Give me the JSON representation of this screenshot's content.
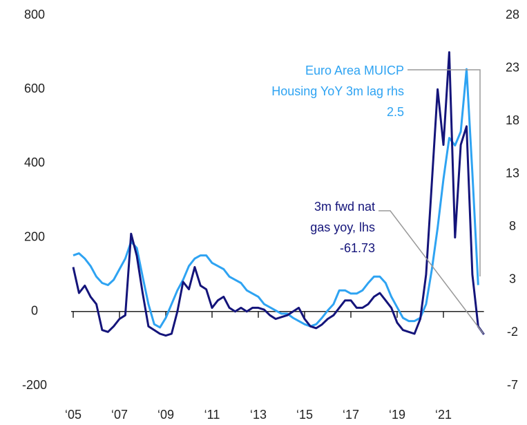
{
  "chart_data": {
    "type": "line",
    "x": [
      2005,
      2005.25,
      2005.5,
      2005.75,
      2006,
      2006.25,
      2006.5,
      2006.75,
      2007,
      2007.25,
      2007.5,
      2007.75,
      2008,
      2008.25,
      2008.5,
      2008.75,
      2009,
      2009.25,
      2009.5,
      2009.75,
      2010,
      2010.25,
      2010.5,
      2010.75,
      2011,
      2011.25,
      2011.5,
      2011.75,
      2012,
      2012.25,
      2012.5,
      2012.75,
      2013,
      2013.25,
      2013.5,
      2013.75,
      2014,
      2014.25,
      2014.5,
      2014.75,
      2015,
      2015.25,
      2015.5,
      2015.75,
      2016,
      2016.25,
      2016.5,
      2016.75,
      2017,
      2017.25,
      2017.5,
      2017.75,
      2018,
      2018.25,
      2018.5,
      2018.75,
      2019,
      2019.25,
      2019.5,
      2019.75,
      2020,
      2020.25,
      2020.5,
      2020.75,
      2021,
      2021.25,
      2021.5,
      2021.75,
      2022,
      2022.25,
      2022.5,
      2022.75
    ],
    "xlim": [
      2005,
      2023
    ],
    "xticks": [
      {
        "value": 2005,
        "label": "‘05"
      },
      {
        "value": 2007,
        "label": "‘07"
      },
      {
        "value": 2009,
        "label": "‘09"
      },
      {
        "value": 2011,
        "label": "‘11"
      },
      {
        "value": 2013,
        "label": "‘13"
      },
      {
        "value": 2015,
        "label": "‘15"
      },
      {
        "value": 2017,
        "label": "‘17"
      },
      {
        "value": 2019,
        "label": "‘19"
      },
      {
        "value": 2021,
        "label": "‘21"
      }
    ],
    "ylim": [
      -200,
      800
    ],
    "yticks": [
      -200,
      0,
      200,
      400,
      600,
      800
    ],
    "y2lim": [
      -7,
      28
    ],
    "y2ticks": [
      -7,
      -2,
      3,
      8,
      13,
      18,
      23,
      28
    ],
    "series": [
      {
        "name": "3m fwd nat gas yoy, lhs",
        "color": "#14147a",
        "values": [
          120,
          50,
          70,
          40,
          20,
          -50,
          -55,
          -40,
          -20,
          -10,
          210,
          150,
          50,
          -40,
          -50,
          -60,
          -65,
          -60,
          0,
          80,
          60,
          120,
          70,
          60,
          10,
          30,
          40,
          10,
          0,
          10,
          0,
          10,
          10,
          5,
          -10,
          -20,
          -15,
          -10,
          0,
          10,
          -20,
          -40,
          -45,
          -35,
          -20,
          -10,
          10,
          30,
          30,
          10,
          10,
          20,
          40,
          50,
          30,
          10,
          -30,
          -50,
          -55,
          -60,
          -20,
          100,
          350,
          600,
          450,
          700,
          200,
          450,
          500,
          100,
          -40,
          -61.73
        ]
      },
      {
        "name": "Euro Area MUICP Housing YoY 3m lag rhs",
        "color": "#2ea3f2",
        "axis": "y2",
        "values": [
          5.3,
          5.5,
          5.0,
          4.3,
          3.3,
          2.7,
          2.5,
          3.0,
          4.0,
          5.0,
          6.6,
          6.0,
          3.3,
          0.7,
          -1.2,
          -1.5,
          -0.6,
          0.7,
          2.0,
          3.0,
          4.3,
          5.0,
          5.3,
          5.3,
          4.6,
          4.3,
          4.0,
          3.3,
          3.0,
          2.7,
          2.0,
          1.7,
          1.4,
          0.7,
          0.4,
          0.1,
          -0.2,
          -0.2,
          -0.6,
          -0.9,
          -1.2,
          -1.4,
          -1.2,
          -0.6,
          0.1,
          0.7,
          2.0,
          2.0,
          1.7,
          1.7,
          2.0,
          2.7,
          3.3,
          3.3,
          2.7,
          1.4,
          0.4,
          -0.6,
          -0.9,
          -0.9,
          -0.6,
          0.7,
          4.0,
          7.9,
          12.5,
          16.4,
          15.7,
          17.0,
          22.9,
          13.1,
          2.5,
          null
        ]
      }
    ],
    "annotations": [
      {
        "lines": [
          "Euro Area MUICP",
          "Housing YoY 3m lag rhs",
          "2.5"
        ]
      },
      {
        "lines": [
          "3m fwd nat",
          "gas yoy, lhs",
          "-61.73"
        ]
      }
    ]
  }
}
